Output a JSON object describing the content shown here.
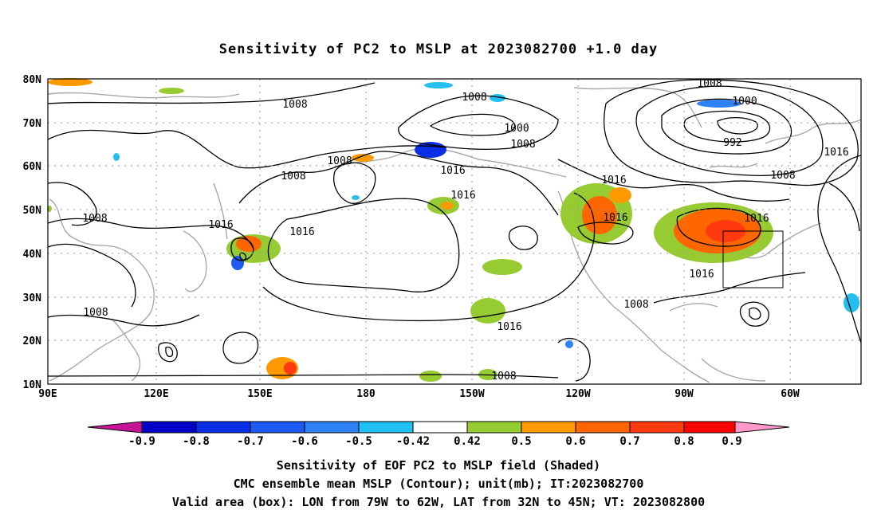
{
  "title": "Sensitivity of PC2 to MSLP at 2023082700 +1.0 day",
  "lat_labels": [
    "80N",
    "70N",
    "60N",
    "50N",
    "40N",
    "30N",
    "20N",
    "10N"
  ],
  "lon_labels": [
    "90E",
    "120E",
    "150E",
    "180",
    "150W",
    "120W",
    "90W",
    "60W"
  ],
  "contour_labels": [
    "1008",
    "1008",
    "1000",
    "1008",
    "1016",
    "1016",
    "1008",
    "1000",
    "992",
    "1008",
    "1016",
    "1016",
    "1016",
    "1008",
    "1016",
    "1016",
    "1008",
    "1016",
    "1008",
    "1008",
    "1008",
    "1008",
    "1016",
    "1016"
  ],
  "colorbar": {
    "labels": [
      "-0.9",
      "-0.8",
      "-0.7",
      "-0.6",
      "-0.5",
      "-0.42",
      "0.42",
      "0.5",
      "0.6",
      "0.7",
      "0.8",
      "0.9"
    ],
    "colors": [
      "#0000c8",
      "#0a2ee6",
      "#1e5af0",
      "#2e82f5",
      "#22c0f0",
      "#ffffff",
      "#96cc32",
      "#ff9900",
      "#ff6600",
      "#ff3a10",
      "#ff0000"
    ],
    "low_arrow_color": "#c81496",
    "high_arrow_color": "#ff99cc"
  },
  "captions": {
    "line1": "Sensitivity of EOF PC2 to MSLP field (Shaded)",
    "line2": "CMC ensemble mean MSLP (Contour); unit(mb); IT:2023082700",
    "line3": "Valid area (box): LON from 79W to 62W, LAT from 32N to 45N; VT: 2023082800"
  }
}
